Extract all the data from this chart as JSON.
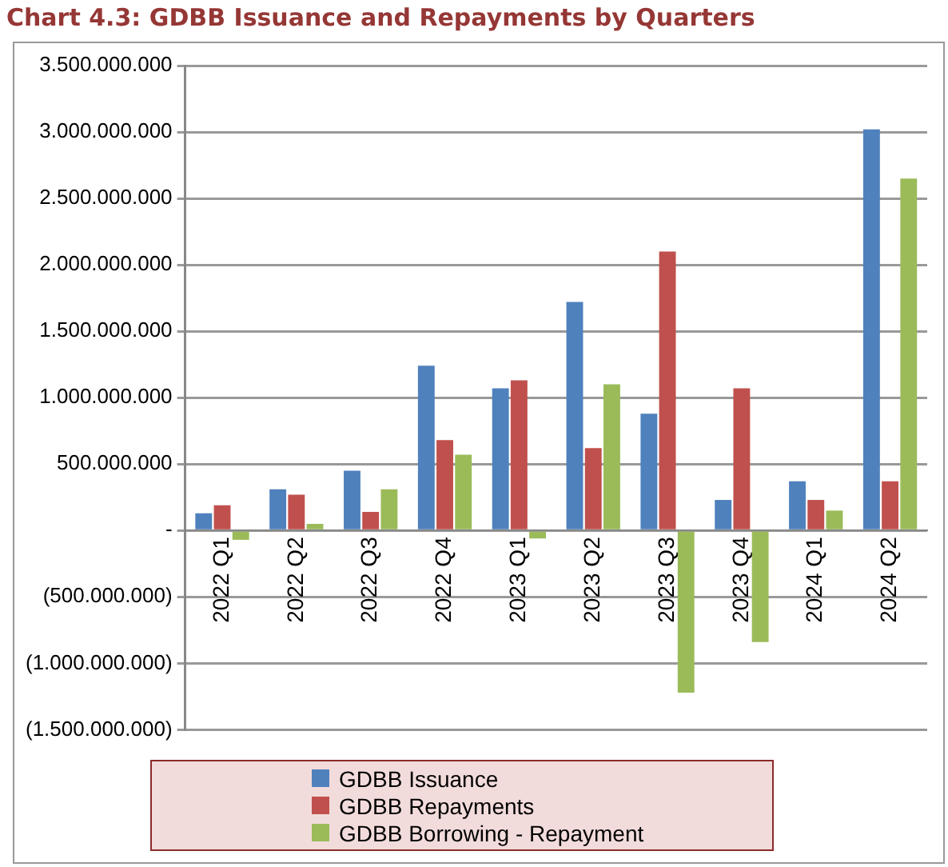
{
  "chart_data": {
    "type": "bar",
    "title": "Chart 4.3: GDBB Issuance and Repayments by Quarters",
    "categories": [
      "2022 Q1",
      "2022 Q2",
      "2022 Q3",
      "2022 Q4",
      "2023 Q1",
      "2023 Q2",
      "2023 Q3",
      "2023 Q4",
      "2024 Q1",
      "2024 Q2"
    ],
    "series": [
      {
        "name": "GDBB Issuance",
        "color": "#4f81bd",
        "values": [
          130000000,
          310000000,
          450000000,
          1240000000,
          1070000000,
          1720000000,
          880000000,
          230000000,
          370000000,
          3020000000
        ]
      },
      {
        "name": "GDBB Repayments",
        "color": "#c0504d",
        "values": [
          190000000,
          270000000,
          140000000,
          680000000,
          1130000000,
          620000000,
          2100000000,
          1070000000,
          230000000,
          370000000
        ]
      },
      {
        "name": "GDBB Borrowing - Repayment",
        "color": "#9bbb59",
        "values": [
          -70000000,
          50000000,
          310000000,
          570000000,
          -60000000,
          1100000000,
          -1220000000,
          -840000000,
          150000000,
          2650000000
        ]
      }
    ],
    "ylim": [
      -1500000000,
      3500000000
    ],
    "yticks": [
      {
        "value": -1500000000,
        "label": "(1.500.000.000)"
      },
      {
        "value": -1000000000,
        "label": "(1.000.000.000)"
      },
      {
        "value": -500000000,
        "label": "(500.000.000)"
      },
      {
        "value": 0,
        "label": "-"
      },
      {
        "value": 500000000,
        "label": "500.000.000"
      },
      {
        "value": 1000000000,
        "label": "1.000.000.000"
      },
      {
        "value": 1500000000,
        "label": "1.500.000.000"
      },
      {
        "value": 2000000000,
        "label": "2.000.000.000"
      },
      {
        "value": 2500000000,
        "label": "2.500.000.000"
      },
      {
        "value": 3000000000,
        "label": "3.000.000.000"
      },
      {
        "value": 3500000000,
        "label": "3.500.000.000"
      }
    ],
    "grid": "y",
    "legend": "bottom"
  }
}
